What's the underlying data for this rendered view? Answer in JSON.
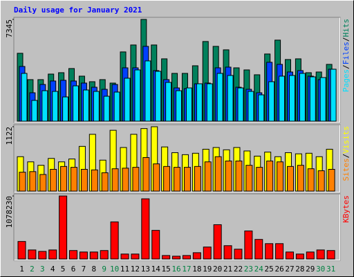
{
  "chart_data": [
    {
      "type": "bar",
      "title": "Daily usage for January 2021",
      "legend_separator": "/",
      "ylim": [
        0,
        7345
      ],
      "yticks": [
        7345
      ],
      "series": [
        {
          "name": "Hits",
          "color": "#00805c",
          "values": [
            4900,
            3000,
            3000,
            3400,
            3500,
            3800,
            3250,
            2850,
            3000,
            2750,
            5000,
            5500,
            7345,
            5500,
            4500,
            3450,
            3450,
            4000,
            5750,
            5400,
            5150,
            3850,
            3700,
            3350,
            4850,
            5850,
            4450,
            4500,
            3500,
            3550,
            4100
          ]
        },
        {
          "name": "Files",
          "color": "#0040ff",
          "values": [
            3950,
            2050,
            2650,
            2900,
            2950,
            2900,
            2750,
            2450,
            2300,
            2650,
            3850,
            3850,
            5400,
            3650,
            3000,
            2400,
            2350,
            2700,
            2750,
            3850,
            3900,
            2450,
            2300,
            2050,
            4250,
            4100,
            3550,
            3650,
            3250,
            3000,
            3750
          ]
        },
        {
          "name": "Pages",
          "color": "#00e0ff",
          "values": [
            3450,
            1500,
            2200,
            2150,
            1750,
            2550,
            2250,
            2150,
            1800,
            2100,
            3100,
            3700,
            4350,
            3600,
            2800,
            2200,
            2400,
            2700,
            2700,
            3450,
            3300,
            2400,
            2150,
            1900,
            2850,
            3250,
            3300,
            3450,
            3200,
            3150,
            3750
          ]
        }
      ]
    },
    {
      "type": "bar",
      "ylim": [
        0,
        1122
      ],
      "yticks": [
        1122
      ],
      "series": [
        {
          "name": "Visits",
          "color": "#ffff00",
          "values": [
            600,
            510,
            450,
            570,
            510,
            560,
            780,
            990,
            540,
            1060,
            760,
            990,
            1090,
            1122,
            770,
            670,
            635,
            660,
            730,
            760,
            720,
            760,
            700,
            610,
            680,
            600,
            670,
            650,
            660,
            600,
            730
          ]
        },
        {
          "name": "Sites",
          "color": "#ff8000",
          "values": [
            330,
            340,
            290,
            380,
            430,
            415,
            380,
            370,
            320,
            390,
            400,
            415,
            585,
            475,
            430,
            415,
            415,
            430,
            510,
            600,
            525,
            525,
            450,
            415,
            525,
            510,
            430,
            450,
            390,
            355,
            380
          ]
        }
      ]
    },
    {
      "type": "bar",
      "ylim": [
        0,
        1078230
      ],
      "yticks": [
        1078230
      ],
      "weekend_color": "#008040",
      "categories": [
        "1",
        "2",
        "3",
        "4",
        "5",
        "6",
        "7",
        "8",
        "9",
        "10",
        "11",
        "12",
        "13",
        "14",
        "15",
        "16",
        "17",
        "18",
        "19",
        "20",
        "21",
        "22",
        "23",
        "24",
        "25",
        "26",
        "27",
        "28",
        "29",
        "30",
        "31"
      ],
      "weekend": [
        false,
        true,
        true,
        false,
        false,
        false,
        false,
        false,
        true,
        true,
        false,
        false,
        false,
        false,
        false,
        true,
        true,
        false,
        false,
        false,
        false,
        false,
        true,
        true,
        false,
        false,
        false,
        false,
        false,
        true,
        true
      ],
      "series": [
        {
          "name": "KBytes",
          "color": "#ff0000",
          "values": [
            300000,
            155000,
            130000,
            155000,
            1078230,
            145000,
            120000,
            120000,
            145000,
            635000,
            85000,
            85000,
            1030000,
            490000,
            60000,
            48000,
            60000,
            108000,
            205000,
            587000,
            228000,
            168000,
            480000,
            335000,
            263000,
            263000,
            120000,
            85000,
            120000,
            155000,
            145000
          ]
        }
      ]
    }
  ]
}
